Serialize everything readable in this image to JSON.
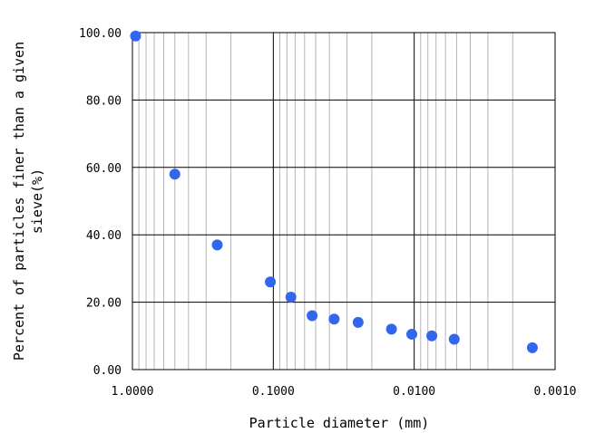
{
  "chart_data": {
    "type": "scatter",
    "xlabel": "Particle diameter (mm)",
    "ylabel_lines": [
      "Percent of particles finer than a given",
      "sieve(%)"
    ],
    "x_scale": "log",
    "x_reversed": true,
    "xlim": [
      1.0,
      0.001
    ],
    "ylim": [
      0,
      100
    ],
    "grid": true,
    "x_tick_labels": [
      "1.0000",
      "0.1000",
      "0.0100",
      "0.0010"
    ],
    "y_tick_labels": [
      "0.00",
      "20.00",
      "40.00",
      "60.00",
      "80.00",
      "100.00"
    ],
    "marker_color": "#3366ee",
    "series": [
      {
        "x": [
          0.95,
          0.5,
          0.25,
          0.105,
          0.075,
          0.053,
          0.037,
          0.025,
          0.0145,
          0.0104,
          0.0075,
          0.0052,
          0.00145
        ],
        "y": [
          99,
          58,
          37,
          26,
          21.5,
          16,
          15,
          14,
          12,
          10.5,
          10,
          9,
          6.5
        ]
      }
    ]
  }
}
